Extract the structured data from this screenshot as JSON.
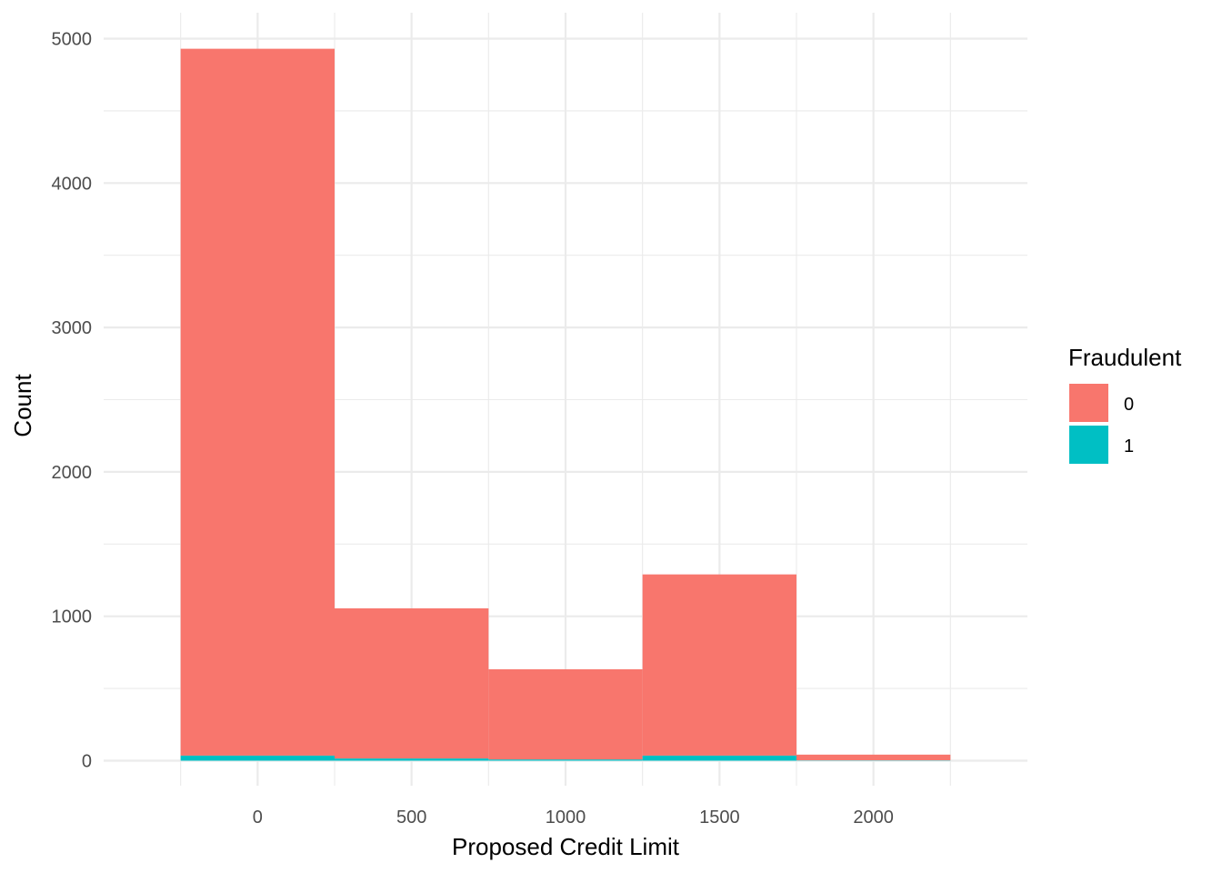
{
  "chart_data": {
    "type": "bar",
    "subtype": "stacked-histogram",
    "title": "",
    "xlabel": "Proposed Credit Limit",
    "ylabel": "Count",
    "xlim": [
      -250,
      2250
    ],
    "ylim": [
      0,
      5000
    ],
    "x_ticks": [
      0,
      500,
      1000,
      1500,
      2000
    ],
    "x_tick_labels": [
      "0",
      "500",
      "1000",
      "1500",
      "2000"
    ],
    "y_ticks": [
      0,
      1000,
      2000,
      3000,
      4000,
      5000
    ],
    "y_tick_labels": [
      "0",
      "1000",
      "2000",
      "3000",
      "4000",
      "5000"
    ],
    "grid": true,
    "legend": {
      "title": "Fraudulent",
      "placement": "right"
    },
    "bins": [
      {
        "start": -250,
        "end": 250
      },
      {
        "start": 250,
        "end": 750
      },
      {
        "start": 750,
        "end": 1250
      },
      {
        "start": 1250,
        "end": 1750
      },
      {
        "start": 1750,
        "end": 2250
      }
    ],
    "series": [
      {
        "name": "0",
        "color": "#F8766D",
        "values": [
          4895,
          1040,
          625,
          1255,
          40
        ]
      },
      {
        "name": "1",
        "color": "#00BFC4",
        "values": [
          35,
          15,
          8,
          35,
          2
        ]
      }
    ]
  }
}
